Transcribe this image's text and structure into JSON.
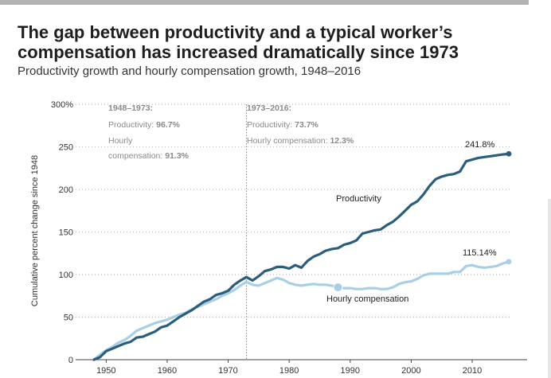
{
  "header": {
    "title": "The gap between productivity and a typical worker’s compensation has increased dramatically since 1973",
    "subtitle": "Productivity growth and hourly compensation growth, 1948–2016"
  },
  "chart_data": {
    "type": "line",
    "title": "The gap between productivity and a typical worker’s compensation has increased dramatically since 1973",
    "subtitle": "Productivity growth and hourly compensation growth, 1948–2016",
    "ylabel": "Cumulative percent change since 1948",
    "xlabel": "",
    "xlim": [
      1945,
      2019
    ],
    "ylim": [
      0,
      300
    ],
    "x_ticks": [
      1950,
      1960,
      1970,
      1980,
      1990,
      2000,
      2010
    ],
    "y_ticks": [
      {
        "value": 0,
        "label": "0"
      },
      {
        "value": 50,
        "label": "50"
      },
      {
        "value": 100,
        "label": "100"
      },
      {
        "value": 150,
        "label": "150"
      },
      {
        "value": 200,
        "label": "200"
      },
      {
        "value": 250,
        "label": "250"
      },
      {
        "value": 300,
        "label": "300%"
      }
    ],
    "grid": "horizontal dotted",
    "divider_year": 1973,
    "annotations": {
      "period1": {
        "heading": "1948–1973:",
        "productivity_label": "Productivity: ",
        "productivity_value": "96.7%",
        "compensation_label_1": "Hourly",
        "compensation_label_2": "compensation: ",
        "compensation_value": "91.3%"
      },
      "period2": {
        "heading": "1973–2016:",
        "productivity_label": "Productivity: ",
        "productivity_value": "73.7%",
        "compensation_label": "Hourly compensation: ",
        "compensation_value": "12.3%"
      }
    },
    "series": [
      {
        "name": "Productivity",
        "color": "#2b5d7c",
        "end_label": "241.8%",
        "x": [
          1948,
          1949,
          1950,
          1951,
          1952,
          1953,
          1954,
          1955,
          1956,
          1957,
          1958,
          1959,
          1960,
          1961,
          1962,
          1963,
          1964,
          1965,
          1966,
          1967,
          1968,
          1969,
          1970,
          1971,
          1972,
          1973,
          1974,
          1975,
          1976,
          1977,
          1978,
          1979,
          1980,
          1981,
          1982,
          1983,
          1984,
          1985,
          1986,
          1987,
          1988,
          1989,
          1990,
          1991,
          1992,
          1993,
          1994,
          1995,
          1996,
          1997,
          1998,
          1999,
          2000,
          2001,
          2002,
          2003,
          2004,
          2005,
          2006,
          2007,
          2008,
          2009,
          2010,
          2011,
          2012,
          2013,
          2014,
          2015,
          2016
        ],
        "values": [
          0,
          3,
          10,
          13,
          16,
          19,
          21,
          26,
          27,
          30,
          33,
          38,
          40,
          45,
          50,
          54,
          58,
          63,
          68,
          71,
          76,
          78,
          81,
          88,
          93,
          97,
          93,
          98,
          104,
          106,
          109,
          109,
          107,
          111,
          108,
          116,
          121,
          124,
          128,
          130,
          131,
          135,
          137,
          140,
          148,
          150,
          152,
          153,
          158,
          162,
          168,
          175,
          182,
          186,
          194,
          204,
          212,
          215,
          217,
          218,
          221,
          233,
          235,
          237,
          238,
          239,
          240,
          241,
          241.8
        ]
      },
      {
        "name": "Hourly compensation",
        "color": "#a9cfe7",
        "end_label": "115.14%",
        "highlight_year": 1988,
        "x": [
          1948,
          1949,
          1950,
          1951,
          1952,
          1953,
          1954,
          1955,
          1956,
          1957,
          1958,
          1959,
          1960,
          1961,
          1962,
          1963,
          1964,
          1965,
          1966,
          1967,
          1968,
          1969,
          1970,
          1971,
          1972,
          1973,
          1974,
          1975,
          1976,
          1977,
          1978,
          1979,
          1980,
          1981,
          1982,
          1983,
          1984,
          1985,
          1986,
          1987,
          1988,
          1989,
          1990,
          1991,
          1992,
          1993,
          1994,
          1995,
          1996,
          1997,
          1998,
          1999,
          2000,
          2001,
          2002,
          2003,
          2004,
          2005,
          2006,
          2007,
          2008,
          2009,
          2010,
          2011,
          2012,
          2013,
          2014,
          2015,
          2016
        ],
        "values": [
          0,
          6,
          11,
          15,
          20,
          23,
          28,
          34,
          37,
          40,
          43,
          45,
          47,
          50,
          53,
          55,
          59,
          62,
          65,
          68,
          71,
          75,
          78,
          82,
          87,
          91.3,
          88,
          87,
          90,
          93,
          96,
          94,
          90,
          88,
          87,
          88,
          89,
          88,
          88,
          87,
          85,
          84,
          84,
          83,
          83,
          84,
          84,
          83,
          83,
          85,
          89,
          91,
          92,
          95,
          99,
          101,
          101,
          101,
          101,
          103,
          103,
          110,
          111,
          109,
          108,
          109,
          110,
          113,
          115.14
        ]
      }
    ]
  }
}
